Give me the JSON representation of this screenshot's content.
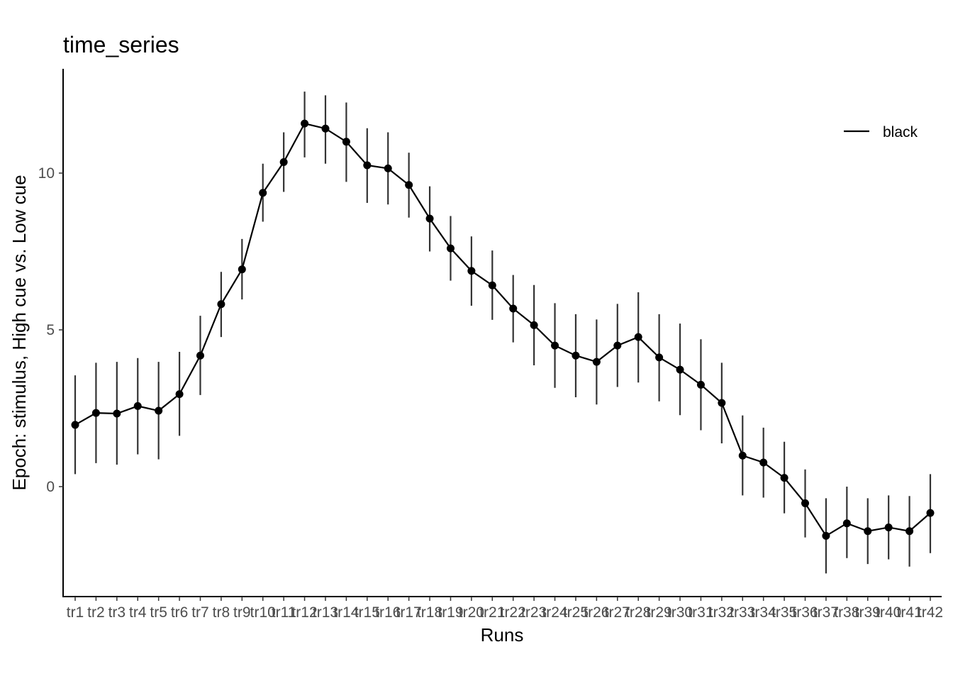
{
  "chart_data": {
    "type": "line",
    "title": "time_series",
    "xlabel": "Runs",
    "ylabel": "Epoch: stimulus, High cue vs. Low cue",
    "ylim": [
      -3.5,
      13.0
    ],
    "yticks": [
      0,
      5,
      10
    ],
    "grid": false,
    "legend": {
      "placement": "top-right",
      "entries": [
        "black"
      ]
    },
    "categories": [
      "tr1",
      "tr2",
      "tr3",
      "tr4",
      "tr5",
      "tr6",
      "tr7",
      "tr8",
      "tr9",
      "tr10",
      "tr11",
      "tr12",
      "tr13",
      "tr14",
      "tr15",
      "tr16",
      "tr17",
      "tr18",
      "tr19",
      "tr20",
      "tr21",
      "tr22",
      "tr23",
      "tr24",
      "tr25",
      "tr26",
      "tr27",
      "tr28",
      "tr29",
      "tr30",
      "tr31",
      "tr32",
      "tr33",
      "tr34",
      "tr35",
      "tr36",
      "tr37",
      "tr38",
      "tr39",
      "tr40",
      "tr41",
      "tr42"
    ],
    "series": [
      {
        "name": "black",
        "color": "#000000",
        "values": [
          1.97,
          2.35,
          2.33,
          2.57,
          2.42,
          2.95,
          4.18,
          5.82,
          6.93,
          9.37,
          10.35,
          11.58,
          11.42,
          11.0,
          10.25,
          10.15,
          9.62,
          8.55,
          7.6,
          6.88,
          6.42,
          5.68,
          5.15,
          4.5,
          4.18,
          3.98,
          4.5,
          4.77,
          4.12,
          3.73,
          3.25,
          2.67,
          0.99,
          0.77,
          0.28,
          -0.53,
          -1.57,
          -1.17,
          -1.42,
          -1.3,
          -1.42,
          -0.84
        ],
        "lower": [
          0.4,
          0.75,
          0.7,
          1.03,
          0.87,
          1.62,
          2.92,
          4.77,
          5.97,
          8.45,
          9.4,
          10.5,
          10.3,
          9.72,
          9.05,
          9.0,
          8.58,
          7.5,
          6.57,
          5.77,
          5.32,
          4.6,
          3.87,
          3.15,
          2.85,
          2.62,
          3.18,
          3.32,
          2.72,
          2.28,
          1.8,
          1.38,
          -0.28,
          -0.35,
          -0.85,
          -1.62,
          -2.77,
          -2.28,
          -2.47,
          -2.32,
          -2.55,
          -2.12
        ],
        "upper": [
          3.55,
          3.95,
          3.98,
          4.1,
          3.98,
          4.3,
          5.45,
          6.85,
          7.9,
          10.3,
          11.3,
          12.6,
          12.48,
          12.25,
          11.43,
          11.3,
          10.65,
          9.58,
          8.63,
          7.98,
          7.53,
          6.75,
          6.43,
          5.85,
          5.5,
          5.33,
          5.83,
          6.2,
          5.5,
          5.2,
          4.7,
          3.95,
          2.27,
          1.88,
          1.43,
          0.55,
          -0.37,
          0.0,
          -0.37,
          -0.28,
          -0.3,
          0.4
        ]
      }
    ]
  }
}
